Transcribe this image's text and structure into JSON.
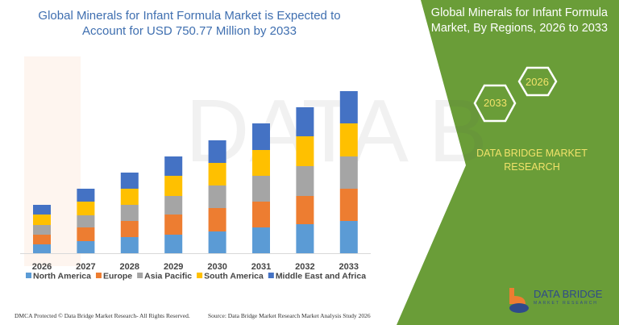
{
  "header": {
    "title": "Global Minerals for Infant Formula Market is Expected to Account for USD 750.77 Million by 2033"
  },
  "side_panel": {
    "title": "Global Minerals for Infant Formula Market, By Regions, 2026 to 2033",
    "hex_start": "2026",
    "hex_end": "2033",
    "brand": "DATA BRIDGE MARKET RESEARCH",
    "logo_text": "DATA BRIDGE",
    "logo_sub": "MARKET RESEARCH",
    "color": "#6a9d38"
  },
  "footer": {
    "left": "DMCA Protected © Data Bridge Market Research- All Rights Reserved.",
    "right": "Source: Data Bridge Market Research  Market Analysis Study 2026"
  },
  "chart_data": {
    "type": "bar",
    "stacked": true,
    "title": "",
    "xlabel": "",
    "ylabel": "",
    "ylim": [
      0,
      210
    ],
    "grid": false,
    "legend_placement": "bottom",
    "categories": [
      "2026",
      "2027",
      "2028",
      "2029",
      "2030",
      "2031",
      "2032",
      "2033"
    ],
    "series": [
      {
        "name": "North America",
        "color": "#5b9bd5",
        "values": [
          11,
          15,
          20,
          23,
          27,
          32,
          36,
          40
        ]
      },
      {
        "name": "Europe",
        "color": "#ed7d31",
        "values": [
          12,
          17,
          20,
          25,
          29,
          32,
          35,
          40
        ]
      },
      {
        "name": "Asia Pacific",
        "color": "#a5a5a5",
        "values": [
          12,
          15,
          20,
          23,
          28,
          32,
          37,
          40
        ]
      },
      {
        "name": "South America",
        "color": "#ffc000",
        "values": [
          13,
          17,
          20,
          25,
          28,
          32,
          37,
          41
        ]
      },
      {
        "name": "Middle East and Africa",
        "color": "#4472c4",
        "values": [
          12,
          16,
          20,
          24,
          28,
          33,
          36,
          40
        ]
      }
    ]
  }
}
